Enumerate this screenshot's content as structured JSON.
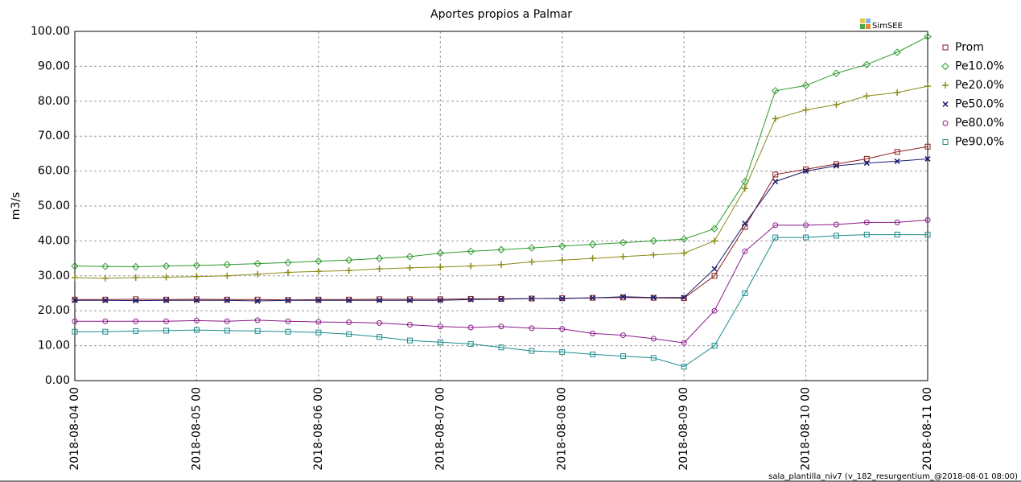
{
  "chart_data": {
    "type": "line",
    "title": "Aportes propios a Palmar",
    "ylabel": "m3/s",
    "logo": "SimSEE",
    "footer": "sala_plantilla_niv7 (v_182_resurgentium_@2018-08-01 08:00)",
    "grid": true,
    "legend": "right",
    "x": [
      "2018-08-04 00",
      "2018-08-04 06",
      "2018-08-04 12",
      "2018-08-04 18",
      "2018-08-05 00",
      "2018-08-05 06",
      "2018-08-05 12",
      "2018-08-05 18",
      "2018-08-06 00",
      "2018-08-06 06",
      "2018-08-06 12",
      "2018-08-06 18",
      "2018-08-07 00",
      "2018-08-07 06",
      "2018-08-07 12",
      "2018-08-07 18",
      "2018-08-08 00",
      "2018-08-08 06",
      "2018-08-08 12",
      "2018-08-08 18",
      "2018-08-09 00",
      "2018-08-09 06",
      "2018-08-09 12",
      "2018-08-09 18",
      "2018-08-10 00",
      "2018-08-10 06",
      "2018-08-10 12",
      "2018-08-10 18",
      "2018-08-11 00"
    ],
    "xlim": [
      "2018-08-04 00",
      "2018-08-11 00"
    ],
    "xticks": [
      "2018-08-04 00",
      "2018-08-05 00",
      "2018-08-06 00",
      "2018-08-07 00",
      "2018-08-08 00",
      "2018-08-09 00",
      "2018-08-10 00",
      "2018-08-11 00"
    ],
    "ylim": [
      0,
      100
    ],
    "yticks": [
      {
        "value": 0,
        "label": "0.00"
      },
      {
        "value": 10,
        "label": "10.00"
      },
      {
        "value": 20,
        "label": "20.00"
      },
      {
        "value": 30,
        "label": "30.00"
      },
      {
        "value": 40,
        "label": "40.00"
      },
      {
        "value": 50,
        "label": "50.00"
      },
      {
        "value": 60,
        "label": "60.00"
      },
      {
        "value": 70,
        "label": "70.00"
      },
      {
        "value": 80,
        "label": "80.00"
      },
      {
        "value": 90,
        "label": "90.00"
      },
      {
        "value": 100,
        "label": "100.00"
      }
    ],
    "series": [
      {
        "name": "Prom",
        "color": "#8b1a1a",
        "marker": "square",
        "values": [
          23.2,
          23.2,
          23.3,
          23.2,
          23.3,
          23.2,
          23.2,
          23.1,
          23.2,
          23.2,
          23.3,
          23.3,
          23.3,
          23.4,
          23.4,
          23.5,
          23.6,
          23.7,
          23.8,
          23.7,
          23.6,
          30,
          44,
          59,
          60.5,
          62,
          63.5,
          65.5,
          67
        ]
      },
      {
        "name": "Pe10.0%",
        "color": "#2e9a2e",
        "marker": "diamond",
        "values": [
          32.8,
          32.7,
          32.6,
          32.8,
          33,
          33.2,
          33.5,
          33.8,
          34.2,
          34.5,
          35,
          35.5,
          36.5,
          37,
          37.5,
          38,
          38.5,
          39,
          39.5,
          40,
          40.5,
          43.5,
          57,
          83,
          84.5,
          88,
          90.5,
          94,
          98.5
        ]
      },
      {
        "name": "Pe20.0%",
        "color": "#8b8b1a",
        "marker": "plus",
        "values": [
          29.5,
          29.3,
          29.5,
          29.6,
          29.8,
          30,
          30.5,
          31,
          31.3,
          31.5,
          32,
          32.3,
          32.5,
          32.8,
          33.2,
          34,
          34.5,
          35,
          35.5,
          36,
          36.5,
          40,
          55,
          75,
          77.5,
          79,
          81.5,
          82.5,
          84.3
        ]
      },
      {
        "name": "Pe50.0%",
        "color": "#1a1a6e",
        "marker": "cross",
        "values": [
          23,
          23,
          22.9,
          23,
          23,
          23,
          22.8,
          23,
          23,
          23,
          23,
          23,
          23,
          23.2,
          23.3,
          23.5,
          23.5,
          23.7,
          24,
          23.8,
          23.8,
          32,
          45,
          57,
          60,
          61.5,
          62.3,
          62.8,
          63.5
        ]
      },
      {
        "name": "Pe80.0%",
        "color": "#8b1a8b",
        "marker": "circle",
        "values": [
          17,
          17,
          17,
          17,
          17.2,
          17,
          17.3,
          17,
          16.8,
          16.7,
          16.5,
          16,
          15.5,
          15.2,
          15.5,
          15,
          14.8,
          13.5,
          13,
          12,
          10.8,
          20,
          37,
          44.5,
          44.5,
          44.7,
          45.3,
          45.3,
          46
        ]
      },
      {
        "name": "Pe90.0%",
        "color": "#1a8b8b",
        "marker": "square",
        "values": [
          14,
          14,
          14.2,
          14.3,
          14.5,
          14.3,
          14.2,
          14,
          13.8,
          13.3,
          12.5,
          11.5,
          11,
          10.5,
          9.5,
          8.5,
          8.2,
          7.5,
          7,
          6.5,
          4,
          10,
          25,
          41,
          41,
          41.5,
          41.8,
          41.8,
          41.8
        ]
      }
    ]
  }
}
